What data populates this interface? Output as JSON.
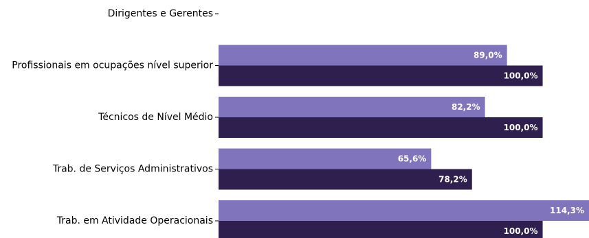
{
  "chart_data": {
    "type": "bar",
    "orientation": "horizontal",
    "categories": [
      "Dirigentes e Gerentes",
      "Profissionais em ocupações nível superior",
      "Técnicos de Nível Médio",
      "Trab. de Serviços Administrativos",
      "Trab. em Atividade Operacionais"
    ],
    "series": [
      {
        "color": "#8075bd",
        "values": [
          null,
          89.0,
          82.2,
          65.6,
          114.3
        ],
        "labels": [
          "",
          "89,0%",
          "82,2%",
          "65,6%",
          "114,3%"
        ]
      },
      {
        "color": "#2e1f4e",
        "values": [
          null,
          100.0,
          100.0,
          78.2,
          100.0
        ],
        "labels": [
          "",
          "100,0%",
          "100,0%",
          "78,2%",
          "100,0%"
        ]
      }
    ],
    "xlim": [
      0,
      114.3
    ],
    "grid": false,
    "legend": "none"
  }
}
